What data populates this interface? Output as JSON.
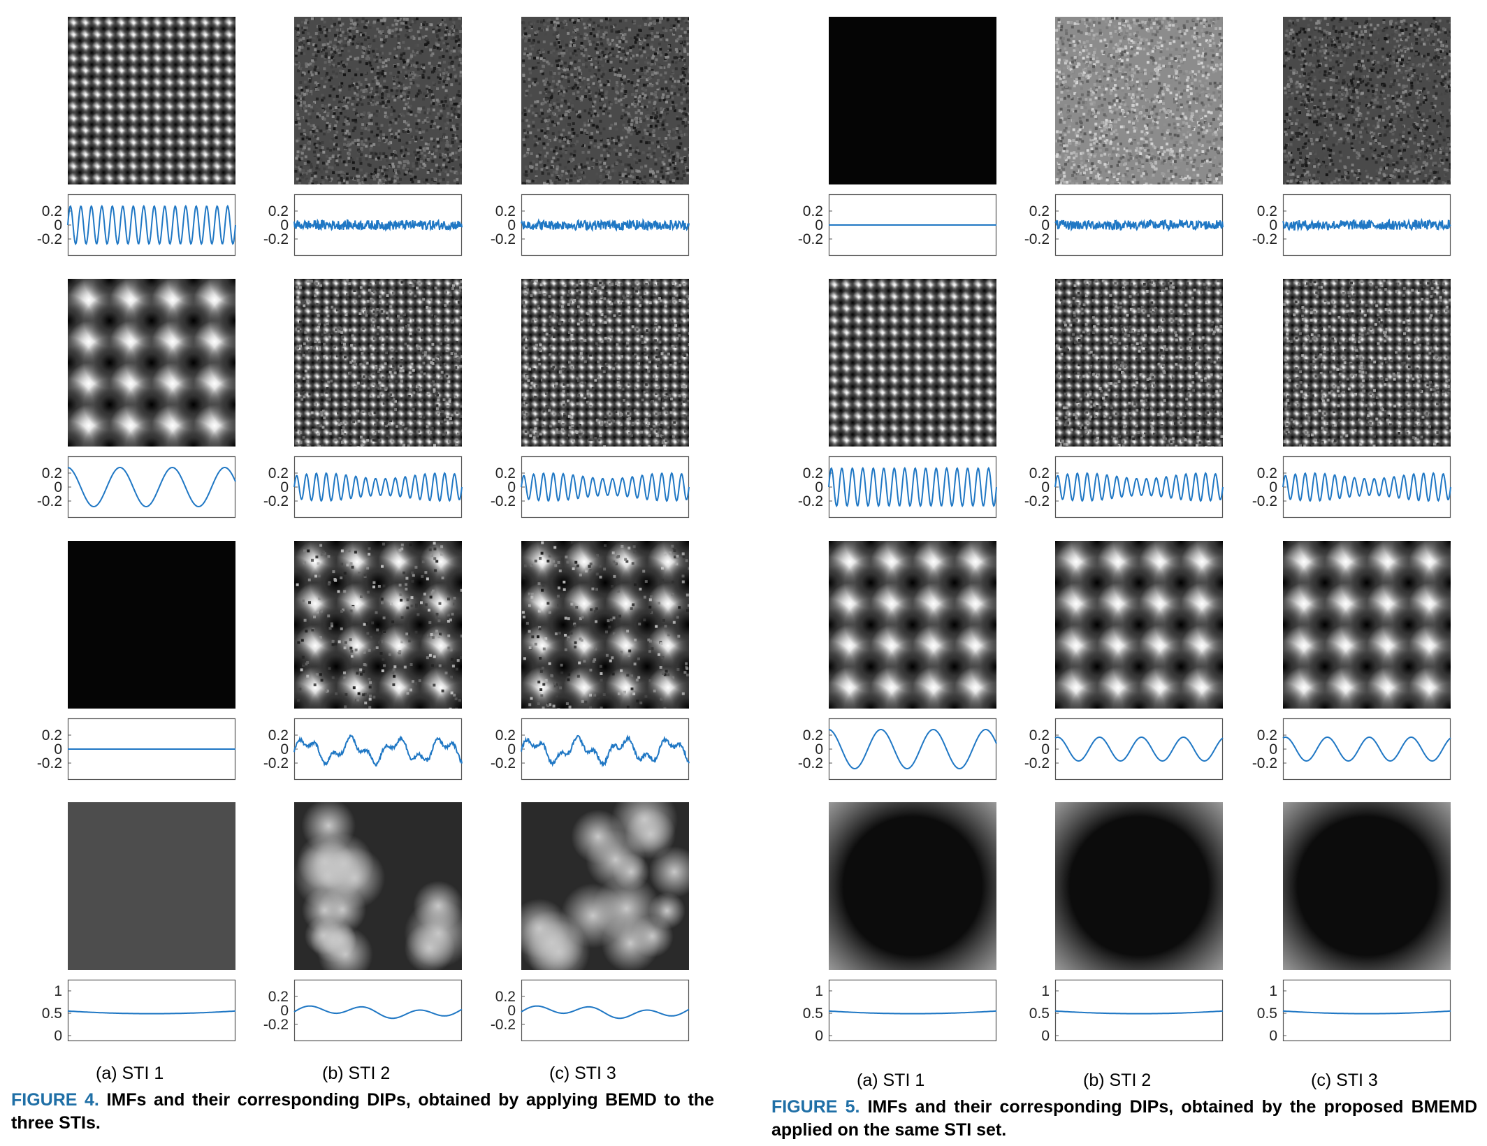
{
  "figures": [
    {
      "caption_label": "FIGURE 4.",
      "caption_text": "IMFs and their corresponding DIPs, obtained by applying BEMD to the three STIs.",
      "columns": [
        "(a) STI 1",
        "(b) STI 2",
        "(c) STI 3"
      ],
      "rows": [
        {
          "image_type": [
            "fine-checker",
            "noise-dark",
            "noise-dark"
          ],
          "signal_type": [
            "sine-fast",
            "noise",
            "noise"
          ]
        },
        {
          "image_type": [
            "coarse-checker",
            "medium-checker",
            "medium-checker"
          ],
          "signal_type": [
            "sine-slow",
            "sine-medium",
            "sine-medium"
          ]
        },
        {
          "image_type": [
            "black",
            "blotchy",
            "blotchy"
          ],
          "signal_type": [
            "flat",
            "irregular",
            "irregular"
          ]
        },
        {
          "image_type": [
            "gray",
            "blur",
            "blur"
          ],
          "signal_type": [
            "residual-flat",
            "residual-wavy",
            "residual-wavy"
          ]
        }
      ]
    },
    {
      "caption_label": "FIGURE 5.",
      "caption_text": "IMFs and their corresponding DIPs, obtained by the proposed BMEMD applied on the same STI set.",
      "columns": [
        "(a) STI 1",
        "(b) STI 2",
        "(c) STI 3"
      ],
      "rows": [
        {
          "image_type": [
            "black",
            "noise-light",
            "noise-dark"
          ],
          "signal_type": [
            "flat",
            "noise",
            "noise"
          ]
        },
        {
          "image_type": [
            "fine-checker",
            "medium-checker",
            "medium-checker"
          ],
          "signal_type": [
            "sine-fast",
            "sine-medium",
            "sine-medium"
          ]
        },
        {
          "image_type": [
            "coarse-checker",
            "coarse-checker",
            "coarse-checker"
          ],
          "signal_type": [
            "sine-slow",
            "sine-slow-small",
            "sine-slow-small"
          ]
        },
        {
          "image_type": [
            "dark-vignette",
            "dark-vignette",
            "dark-vignette"
          ],
          "signal_type": [
            "residual-flat",
            "residual-flat",
            "residual-flat"
          ]
        }
      ]
    }
  ],
  "axis_ticks": {
    "imf": [
      "0.2",
      "0",
      "-0.2"
    ],
    "residual_std": [
      "1",
      "0.5",
      "0"
    ],
    "residual_wavy": [
      "0.2",
      "0",
      "-0.2"
    ]
  },
  "colors": {
    "signal_line": "#1f77c4",
    "caption_accent": "#1f6fa6"
  }
}
